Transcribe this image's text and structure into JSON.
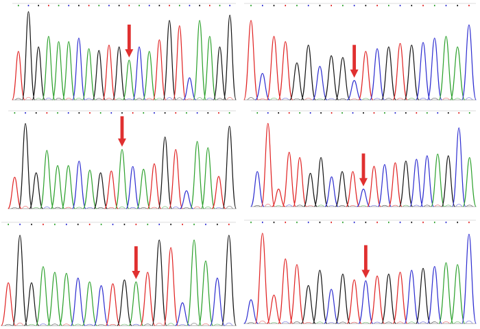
{
  "colors": {
    "A": "#2aa02a",
    "C": "#2b2bd0",
    "G": "#111111",
    "T": "#e02020",
    "arrow": "#e03030",
    "baseline": "#999999",
    "frame": "#bbbbbb",
    "ticks": [
      "#2aa02a",
      "#2b2bd0",
      "#111111",
      "#e02020"
    ]
  },
  "panels": [
    {
      "name": "panel-top-left",
      "peaks": [
        {
          "b": "T",
          "h": 0.55
        },
        {
          "b": "G",
          "h": 1.0
        },
        {
          "b": "G",
          "h": 0.6
        },
        {
          "b": "A",
          "h": 0.72
        },
        {
          "b": "A",
          "h": 0.66
        },
        {
          "b": "A",
          "h": 0.66
        },
        {
          "b": "C",
          "h": 0.7
        },
        {
          "b": "A",
          "h": 0.58
        },
        {
          "b": "G",
          "h": 0.56
        },
        {
          "b": "T",
          "h": 0.62
        },
        {
          "b": "G",
          "h": 0.6
        },
        {
          "b": "A",
          "h": 0.45
        },
        {
          "b": "C",
          "h": 0.6
        },
        {
          "b": "A",
          "h": 0.55
        },
        {
          "b": "T",
          "h": 0.68
        },
        {
          "b": "G",
          "h": 0.9
        },
        {
          "b": "T",
          "h": 0.84
        },
        {
          "b": "C",
          "h": 0.25
        },
        {
          "b": "A",
          "h": 0.9
        },
        {
          "b": "A",
          "h": 0.72
        },
        {
          "b": "G",
          "h": 0.6
        },
        {
          "b": "G",
          "h": 0.96
        }
      ],
      "arrow_index": 11
    },
    {
      "name": "panel-top-right",
      "peaks": [
        {
          "b": "T",
          "h": 0.9
        },
        {
          "b": "C",
          "h": 0.3
        },
        {
          "b": "T",
          "h": 0.72
        },
        {
          "b": "T",
          "h": 0.66
        },
        {
          "b": "G",
          "h": 0.42
        },
        {
          "b": "G",
          "h": 0.62
        },
        {
          "b": "C",
          "h": 0.38
        },
        {
          "b": "G",
          "h": 0.5
        },
        {
          "b": "G",
          "h": 0.48
        },
        {
          "b": "C",
          "h": 0.22
        },
        {
          "b": "T",
          "h": 0.55
        },
        {
          "b": "C",
          "h": 0.58
        },
        {
          "b": "G",
          "h": 0.6
        },
        {
          "b": "T",
          "h": 0.64
        },
        {
          "b": "G",
          "h": 0.62
        },
        {
          "b": "C",
          "h": 0.65
        },
        {
          "b": "C",
          "h": 0.7
        },
        {
          "b": "A",
          "h": 0.72
        },
        {
          "b": "A",
          "h": 0.6
        },
        {
          "b": "C",
          "h": 0.85
        }
      ],
      "arrow_index": 9
    },
    {
      "name": "panel-mid-left",
      "peaks": [
        {
          "b": "T",
          "h": 0.35
        },
        {
          "b": "G",
          "h": 0.95
        },
        {
          "b": "G",
          "h": 0.4
        },
        {
          "b": "A",
          "h": 0.65
        },
        {
          "b": "A",
          "h": 0.48
        },
        {
          "b": "A",
          "h": 0.48
        },
        {
          "b": "C",
          "h": 0.53
        },
        {
          "b": "A",
          "h": 0.43
        },
        {
          "b": "G",
          "h": 0.4
        },
        {
          "b": "T",
          "h": 0.42
        },
        {
          "b": "A",
          "h": 0.66
        },
        {
          "b": "C",
          "h": 0.47
        },
        {
          "b": "A",
          "h": 0.44
        },
        {
          "b": "T",
          "h": 0.5
        },
        {
          "b": "G",
          "h": 0.8
        },
        {
          "b": "T",
          "h": 0.66
        },
        {
          "b": "C",
          "h": 0.2
        },
        {
          "b": "A",
          "h": 0.75
        },
        {
          "b": "A",
          "h": 0.68
        },
        {
          "b": "T",
          "h": 0.36
        },
        {
          "b": "G",
          "h": 0.92
        }
      ],
      "arrow_index": 10
    },
    {
      "name": "panel-mid-right",
      "peaks": [
        {
          "b": "C",
          "h": 0.4
        },
        {
          "b": "T",
          "h": 0.95
        },
        {
          "b": "T",
          "h": 0.2
        },
        {
          "b": "T",
          "h": 0.62
        },
        {
          "b": "T",
          "h": 0.56
        },
        {
          "b": "G",
          "h": 0.38
        },
        {
          "b": "G",
          "h": 0.56
        },
        {
          "b": "C",
          "h": 0.34
        },
        {
          "b": "G",
          "h": 0.4
        },
        {
          "b": "T",
          "h": 0.4
        },
        {
          "b": "C",
          "h": 0.2
        },
        {
          "b": "T",
          "h": 0.46
        },
        {
          "b": "C",
          "h": 0.48
        },
        {
          "b": "T",
          "h": 0.5
        },
        {
          "b": "G",
          "h": 0.52
        },
        {
          "b": "C",
          "h": 0.54
        },
        {
          "b": "C",
          "h": 0.58
        },
        {
          "b": "A",
          "h": 0.6
        },
        {
          "b": "G",
          "h": 0.58
        },
        {
          "b": "C",
          "h": 0.9
        },
        {
          "b": "A",
          "h": 0.56
        }
      ],
      "arrow_index": 10
    },
    {
      "name": "panel-bottom-left",
      "peaks": [
        {
          "b": "T",
          "h": 0.45
        },
        {
          "b": "G",
          "h": 0.95
        },
        {
          "b": "G",
          "h": 0.45
        },
        {
          "b": "A",
          "h": 0.62
        },
        {
          "b": "A",
          "h": 0.56
        },
        {
          "b": "A",
          "h": 0.55
        },
        {
          "b": "C",
          "h": 0.5
        },
        {
          "b": "A",
          "h": 0.46
        },
        {
          "b": "C",
          "h": 0.42
        },
        {
          "b": "T",
          "h": 0.44
        },
        {
          "b": "G",
          "h": 0.48
        },
        {
          "b": "A",
          "h": 0.46
        },
        {
          "b": "T",
          "h": 0.56
        },
        {
          "b": "G",
          "h": 0.9
        },
        {
          "b": "T",
          "h": 0.82
        },
        {
          "b": "C",
          "h": 0.24
        },
        {
          "b": "A",
          "h": 0.9
        },
        {
          "b": "A",
          "h": 0.68
        },
        {
          "b": "C",
          "h": 0.5
        },
        {
          "b": "G",
          "h": 0.95
        }
      ],
      "arrow_index": 11
    },
    {
      "name": "panel-bottom-right",
      "peaks": [
        {
          "b": "C",
          "h": 0.25
        },
        {
          "b": "T",
          "h": 0.95
        },
        {
          "b": "T",
          "h": 0.3
        },
        {
          "b": "T",
          "h": 0.68
        },
        {
          "b": "T",
          "h": 0.62
        },
        {
          "b": "G",
          "h": 0.4
        },
        {
          "b": "G",
          "h": 0.56
        },
        {
          "b": "C",
          "h": 0.36
        },
        {
          "b": "G",
          "h": 0.52
        },
        {
          "b": "T",
          "h": 0.46
        },
        {
          "b": "C",
          "h": 0.45
        },
        {
          "b": "T",
          "h": 0.5
        },
        {
          "b": "G",
          "h": 0.52
        },
        {
          "b": "T",
          "h": 0.54
        },
        {
          "b": "C",
          "h": 0.56
        },
        {
          "b": "G",
          "h": 0.58
        },
        {
          "b": "C",
          "h": 0.6
        },
        {
          "b": "A",
          "h": 0.64
        },
        {
          "b": "A",
          "h": 0.62
        },
        {
          "b": "C",
          "h": 0.94
        }
      ],
      "arrow_index": 10
    }
  ]
}
